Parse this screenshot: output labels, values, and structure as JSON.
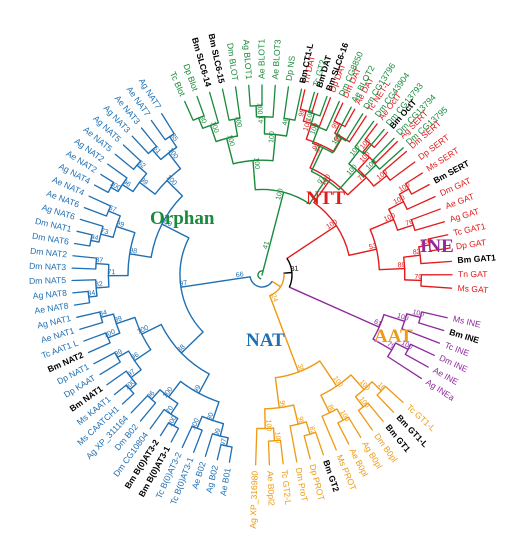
{
  "colors": {
    "Orphan": "#1a8a3c",
    "NTT": "#e31a1c",
    "INE": "#8e2a9c",
    "AAT": "#ee9a12",
    "NAT": "#1f6fb3",
    "root": "#000000"
  },
  "clades": [
    {
      "key": "NTT",
      "label": "NTT"
    },
    {
      "key": "INE",
      "label": "INE"
    },
    {
      "key": "AAT",
      "label": "AAT"
    },
    {
      "key": "NAT",
      "label": "NAT"
    },
    {
      "key": "Orphan",
      "label": "Orphan"
    }
  ],
  "leaves": {
    "NTT": [
      {
        "name": "Tn DAT"
      },
      {
        "name": "Bm DAT",
        "bold": true
      },
      {
        "name": "Dp DAT"
      },
      {
        "name": "Dm DAT"
      },
      {
        "name": "Ae DAT"
      },
      {
        "name": "Tc NET-L"
      },
      {
        "name": "Ae OctT"
      },
      {
        "name": "Bm OctT",
        "bold": true
      },
      {
        "name": "Ag SERT"
      },
      {
        "name": "Dm SERT"
      },
      {
        "name": "Dp SERT"
      },
      {
        "name": "Ms SERT"
      },
      {
        "name": "Bm SERT",
        "bold": true
      },
      {
        "name": "Dm GAT"
      },
      {
        "name": "Ae GAT"
      },
      {
        "name": "Ag GAT"
      },
      {
        "name": "Tc GAT1"
      },
      {
        "name": "Dp GAT"
      },
      {
        "name": "Bm GAT1",
        "bold": true
      },
      {
        "name": "Tn GAT"
      },
      {
        "name": "Ms GAT"
      }
    ],
    "INE": [
      {
        "name": "Ms INE"
      },
      {
        "name": "Bm INE",
        "bold": true
      },
      {
        "name": "Tc INE"
      },
      {
        "name": "Dm INE"
      },
      {
        "name": "Ae INE"
      },
      {
        "name": "Ag INEa"
      }
    ],
    "AAT": [
      {
        "name": "Tc GT1-L"
      },
      {
        "name": "Bm GT1-L",
        "bold": true
      },
      {
        "name": "Bm GT1",
        "bold": true
      },
      {
        "name": "Dm B0pl"
      },
      {
        "name": "Ag B0pl"
      },
      {
        "name": "Ae B0pl"
      },
      {
        "name": "Ms PROT"
      },
      {
        "name": "Bm GT2",
        "bold": true
      },
      {
        "name": "Dp PROT"
      },
      {
        "name": "Dm ProT"
      },
      {
        "name": "Tc GT2-L"
      },
      {
        "name": "Ae B0pl2"
      },
      {
        "name": "Ag XP_316980"
      }
    ],
    "NAT": [
      {
        "name": "Ae B01"
      },
      {
        "name": "Ag B02"
      },
      {
        "name": "Ae B02"
      },
      {
        "name": "Tc B(0)AT3-1"
      },
      {
        "name": "Tc B(0)AT3-2"
      },
      {
        "name": "Bm B(0)AT3-1",
        "bold": true
      },
      {
        "name": "Bm B(0)AT3-2",
        "bold": true
      },
      {
        "name": "Dm CG10804"
      },
      {
        "name": "Dm B02"
      },
      {
        "name": "Ag XP_311164"
      },
      {
        "name": "Ms CAATCH1"
      },
      {
        "name": "Ms KAAT1"
      },
      {
        "name": "Bm NAT1",
        "bold": true
      },
      {
        "name": "Dp KAAT"
      },
      {
        "name": "Dp NAT1"
      },
      {
        "name": "Bm NAT2",
        "bold": true
      },
      {
        "name": "Tc AAT1 L"
      },
      {
        "name": "Ae NAT1"
      },
      {
        "name": "Ag NAT1"
      },
      {
        "name": "Ae NAT8"
      },
      {
        "name": "Ag NAT8"
      },
      {
        "name": "Dm NAT5"
      },
      {
        "name": "Dm NAT3"
      },
      {
        "name": "Dm NAT2"
      },
      {
        "name": "Dm NAT6"
      },
      {
        "name": "Dm NAT1"
      },
      {
        "name": "Ag NAT6"
      },
      {
        "name": "Ae NAT6"
      },
      {
        "name": "Ae NAT4"
      },
      {
        "name": "Ag NAT4"
      },
      {
        "name": "Ae NAT2"
      },
      {
        "name": "Ag NAT2"
      },
      {
        "name": "Ae NAT5"
      },
      {
        "name": "Ag NAT5"
      },
      {
        "name": "Ag NAT3"
      },
      {
        "name": "Ae NAT3"
      },
      {
        "name": "Ae NAT7"
      },
      {
        "name": "Ag NAT7"
      }
    ],
    "Orphan": [
      {
        "name": "Tc Blot"
      },
      {
        "name": "Dp Blot"
      },
      {
        "name": "Bm SLC6-14",
        "bold": true
      },
      {
        "name": "Bm SLC6-15",
        "bold": true
      },
      {
        "name": "Dm BLOT"
      },
      {
        "name": "Ag BLOT1"
      },
      {
        "name": "Ae BLOT1"
      },
      {
        "name": "Ae BLOT3"
      },
      {
        "name": "Dp NS"
      },
      {
        "name": "Bm CT1-L",
        "bold": true
      },
      {
        "name": "Tc GT2"
      },
      {
        "name": "Bm SLC6-16",
        "bold": true
      },
      {
        "name": "Dm CG8850"
      },
      {
        "name": "Ae BLOT2"
      },
      {
        "name": "Dm CG13796"
      },
      {
        "name": "Dm CG43904"
      },
      {
        "name": "Dm CG13793"
      },
      {
        "name": "Dm CG13794"
      },
      {
        "name": "Dm CG13795"
      }
    ]
  },
  "support_values": {
    "major": {
      "NTT": "31",
      "AAT": "24",
      "NAT": "66",
      "NAT_inner": "98",
      "Orphan": "41",
      "Orphan_inner": "41",
      "INE_inner": "56",
      "AAT_inner": "38"
    },
    "NTT": [
      "99",
      "100",
      "99",
      "95",
      "99",
      "100",
      "100",
      "100",
      "71",
      "100",
      "100",
      "100",
      "76",
      "100",
      "100",
      "82",
      "70",
      "89",
      "53",
      "100",
      "100",
      "100",
      "72",
      "36"
    ],
    "INE": [
      "100",
      "100",
      "100",
      "79",
      "61",
      "56"
    ],
    "AAT": [
      "18",
      "100",
      "100",
      "100",
      "80",
      "100",
      "82",
      "98",
      "100",
      "100",
      "99",
      "38"
    ],
    "NAT": [
      "97",
      "99",
      "100",
      "90",
      "100",
      "70",
      "96",
      "100",
      "99",
      "100",
      "97",
      "99",
      "96",
      "100",
      "84",
      "99",
      "100",
      "88",
      "84",
      "82",
      "87",
      "71",
      "94",
      "73",
      "67",
      "99",
      "98",
      "100",
      "96",
      "52",
      "99",
      "61",
      "85",
      "100",
      "100",
      "100",
      "97",
      "100",
      "100"
    ],
    "Orphan": [
      "80",
      "100",
      "100",
      "100",
      "100",
      "41",
      "46",
      "100",
      "100",
      "100",
      "100",
      "100",
      "84",
      "100",
      "100",
      "100",
      "97",
      "100"
    ]
  }
}
